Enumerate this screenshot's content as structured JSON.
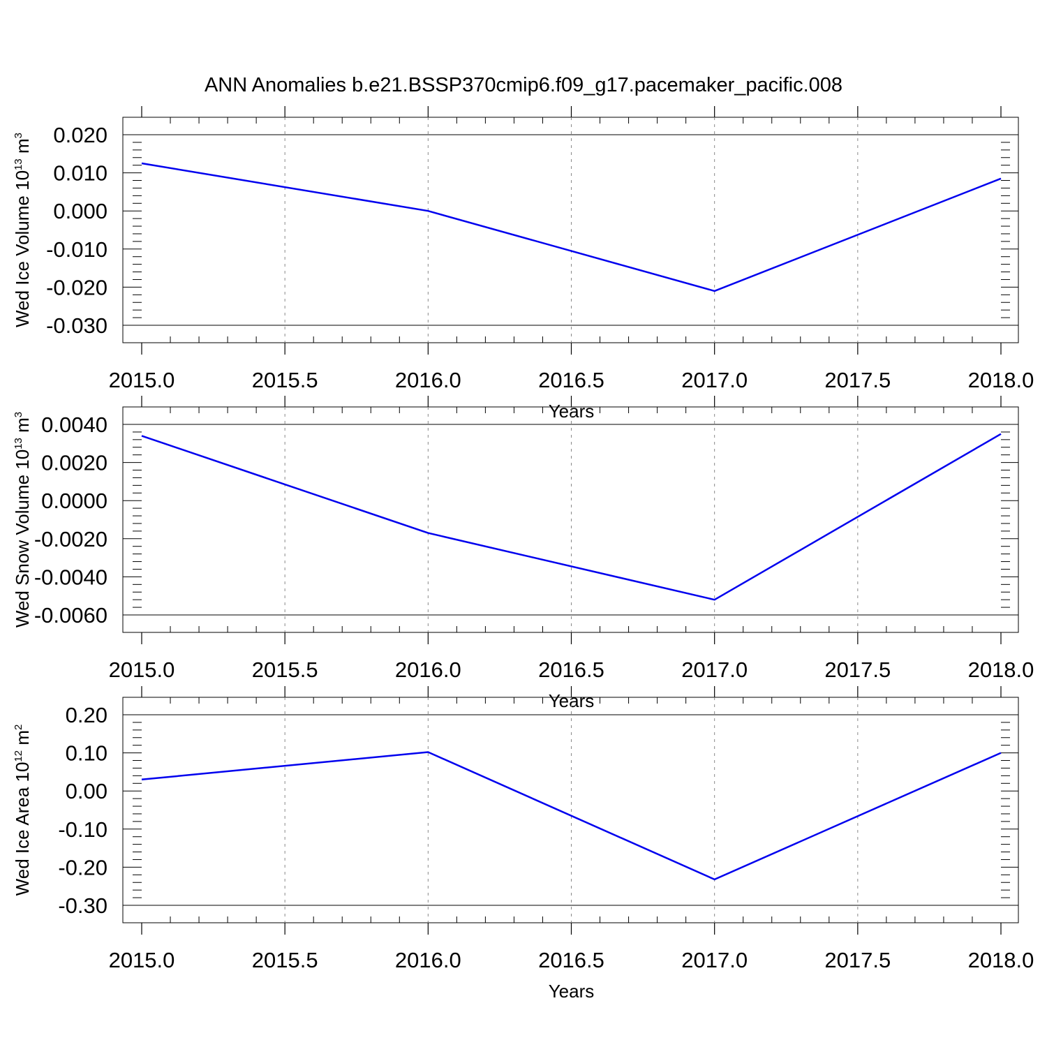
{
  "title": "ANN Anomalies b.e21.BSSP370cmip6.f09_g17.pacemaker_pacific.008",
  "colors": {
    "line": "#0000ee",
    "axis": "#000000",
    "grid": "#888888"
  },
  "chart_data": [
    {
      "type": "line",
      "x": [
        2015.0,
        2016.0,
        2017.0,
        2018.0
      ],
      "series": [
        {
          "values": [
            0.0125,
            0.0,
            -0.021,
            0.0085
          ]
        }
      ],
      "xlim": [
        2015.0,
        2018.0
      ],
      "ylim": [
        -0.03,
        0.02
      ],
      "xticks": [
        "2015.0",
        "2015.5",
        "2016.0",
        "2016.5",
        "2017.0",
        "2017.5",
        "2018.0"
      ],
      "yticks": [
        "0.020",
        "0.010",
        "0.000",
        "-0.010",
        "-0.020",
        "-0.030"
      ],
      "xlabel": "Years",
      "ylabel": {
        "main": "Wed Ice Volume 10",
        "exp": "13",
        "unit": " m",
        "unit_exp": "3"
      },
      "grid": "vertical dashed"
    },
    {
      "type": "line",
      "x": [
        2015.0,
        2016.0,
        2017.0,
        2018.0
      ],
      "series": [
        {
          "values": [
            0.0034,
            -0.0017,
            -0.0052,
            0.0035
          ]
        }
      ],
      "xlim": [
        2015.0,
        2018.0
      ],
      "ylim": [
        -0.006,
        0.004
      ],
      "xticks": [
        "2015.0",
        "2015.5",
        "2016.0",
        "2016.5",
        "2017.0",
        "2017.5",
        "2018.0"
      ],
      "yticks": [
        "0.0040",
        "0.0020",
        "0.0000",
        "-0.0020",
        "-0.0040",
        "-0.0060"
      ],
      "xlabel": "Years",
      "ylabel": {
        "main": "Wed Snow Volume 10",
        "exp": "13",
        "unit": " m",
        "unit_exp": "3"
      },
      "grid": "vertical dashed"
    },
    {
      "type": "line",
      "x": [
        2015.0,
        2016.0,
        2017.0,
        2018.0
      ],
      "series": [
        {
          "values": [
            0.03,
            0.102,
            -0.232,
            0.1
          ]
        }
      ],
      "xlim": [
        2015.0,
        2018.0
      ],
      "ylim": [
        -0.3,
        0.2
      ],
      "xticks": [
        "2015.0",
        "2015.5",
        "2016.0",
        "2016.5",
        "2017.0",
        "2017.5",
        "2018.0"
      ],
      "yticks": [
        "0.20",
        "0.10",
        "0.00",
        "-0.10",
        "-0.20",
        "-0.30"
      ],
      "xlabel": "Years",
      "ylabel": {
        "main": "Wed Ice Area 10",
        "exp": "12",
        "unit": " m",
        "unit_exp": "2"
      },
      "grid": "vertical dashed"
    }
  ]
}
